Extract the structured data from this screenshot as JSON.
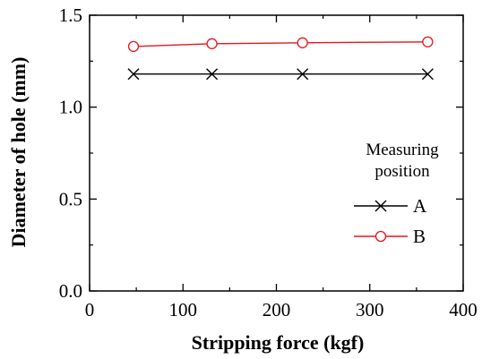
{
  "chart_data": {
    "type": "line",
    "xlabel": "Stripping force (kgf)",
    "ylabel": "Diameter of hole (mm)",
    "xlim": [
      0,
      400
    ],
    "ylim": [
      0.0,
      1.5
    ],
    "x_ticks": [
      0,
      100,
      200,
      300,
      400
    ],
    "x_tick_labels": [
      "0",
      "100",
      "200",
      "300",
      "400"
    ],
    "y_ticks": [
      0.0,
      0.5,
      1.0,
      1.5
    ],
    "y_tick_labels": [
      "0.0",
      "0.5",
      "1.0",
      "1.5"
    ],
    "grid": false,
    "legend": {
      "title_lines": [
        "Measuring",
        "position"
      ],
      "placement": "right"
    },
    "series": [
      {
        "name": "A",
        "color": "#000000",
        "marker": "x",
        "x": [
          47,
          131,
          228,
          362
        ],
        "y": [
          1.18,
          1.18,
          1.18,
          1.18
        ]
      },
      {
        "name": "B",
        "color": "#e8141c",
        "marker": "open-circle",
        "x": [
          47,
          131,
          228,
          362
        ],
        "y": [
          1.33,
          1.345,
          1.35,
          1.355
        ]
      }
    ]
  }
}
